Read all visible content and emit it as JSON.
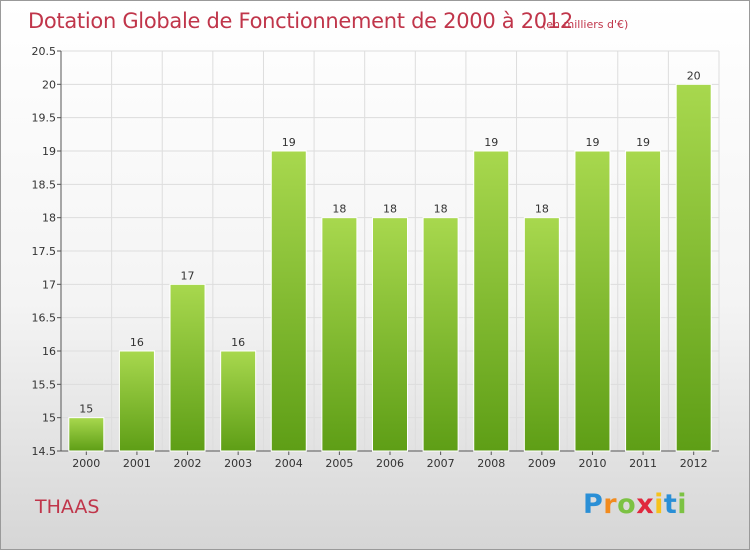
{
  "chart_data": {
    "type": "bar",
    "title": "Dotation Globale de Fonctionnement de 2000 à 2012",
    "subtitle": "(en milliers d'€)",
    "categories": [
      "2000",
      "2001",
      "2002",
      "2003",
      "2004",
      "2005",
      "2006",
      "2007",
      "2008",
      "2009",
      "2010",
      "2011",
      "2012"
    ],
    "values": [
      15,
      16,
      17,
      16,
      19,
      18,
      18,
      18,
      19,
      18,
      19,
      19,
      20
    ],
    "data_labels": [
      "15",
      "16",
      "17",
      "16",
      "19",
      "18",
      "18",
      "18",
      "19",
      "18",
      "19",
      "19",
      "20"
    ],
    "ylim": [
      14.5,
      20.5
    ],
    "yticks": [
      14.5,
      15,
      15.5,
      16,
      16.5,
      17,
      17.5,
      18,
      18.5,
      19,
      19.5,
      20,
      20.5
    ],
    "ytick_labels": [
      "14.5",
      "15",
      "15.5",
      "16",
      "16.5",
      "17",
      "17.5",
      "18",
      "18.5",
      "19",
      "19.5",
      "20",
      "20.5"
    ],
    "xlabel": "",
    "ylabel": "",
    "grid": true,
    "bar_color": "#7dba2f",
    "bar_color_top": "#a8d84e",
    "grid_color": "#dddddd"
  },
  "commune": "THAAS",
  "logo": {
    "letters": [
      "P",
      "r",
      "o",
      "x",
      "i",
      "t",
      "i"
    ]
  }
}
